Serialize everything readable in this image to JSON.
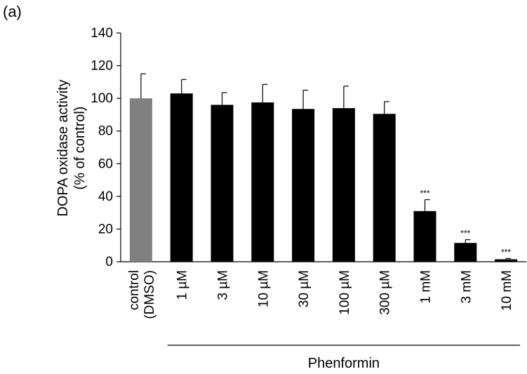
{
  "panel_label": "(a)",
  "chart_data": {
    "type": "bar",
    "title": "",
    "ylabel_lines": [
      "DOPA oxidase activity",
      "(% of control)"
    ],
    "xlabel": "Phenformin",
    "categories": [
      "control (DMSO)",
      "1 µM",
      "3 µM",
      "10 µM",
      "30 µM",
      "100 µM",
      "300 µM",
      "1 mM",
      "3 mM",
      "10 mM"
    ],
    "category_lines": [
      [
        "control",
        "(DMSO)"
      ],
      [
        "1 µM"
      ],
      [
        "3 µM"
      ],
      [
        "10 µM"
      ],
      [
        "30 µM"
      ],
      [
        "100 µM"
      ],
      [
        "300 µM"
      ],
      [
        "1 mM"
      ],
      [
        "3 mM"
      ],
      [
        "10 mM"
      ]
    ],
    "values": [
      100,
      103,
      96,
      97.5,
      93.5,
      94,
      90.5,
      31,
      11.5,
      1.5
    ],
    "errors": [
      15,
      8.5,
      7.5,
      11,
      11.5,
      13.5,
      7.5,
      7,
      2,
      0.5
    ],
    "significance": [
      "",
      "",
      "",
      "",
      "",
      "",
      "",
      "***",
      "***",
      "***"
    ],
    "bar_colors": [
      "#808080",
      "#000000",
      "#000000",
      "#000000",
      "#000000",
      "#000000",
      "#000000",
      "#000000",
      "#000000",
      "#000000"
    ],
    "group_bracket": {
      "from_index": 1,
      "to_index": 9,
      "label": "Phenformin"
    },
    "ylim": [
      0,
      140
    ],
    "yticks": [
      0,
      20,
      40,
      60,
      80,
      100,
      120,
      140
    ],
    "grid": false,
    "legend": "none"
  }
}
